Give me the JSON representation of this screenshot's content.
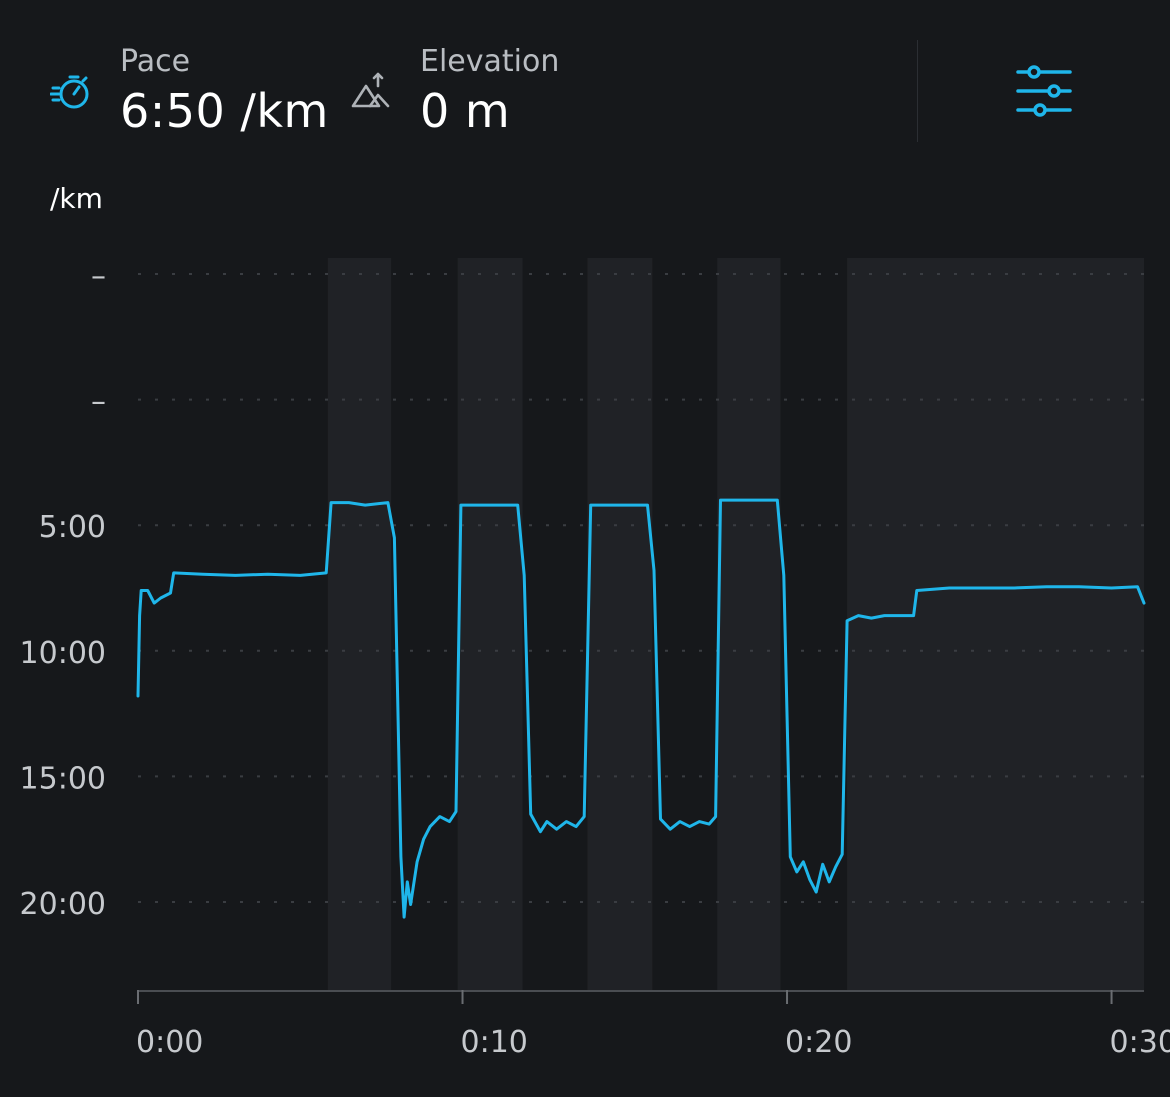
{
  "header": {
    "pace": {
      "label": "Pace",
      "value": "6:50 /km",
      "icon": "stopwatch-icon"
    },
    "elevation": {
      "label": "Elevation",
      "value": "0 m",
      "icon": "mountain-elevation-icon"
    },
    "settings": {
      "icon": "sliders-settings-icon"
    }
  },
  "colors": {
    "background": "#16181b",
    "accent": "#1fb6ea",
    "shade": "#202226",
    "grid": "#3a3d42",
    "axis_text": "#c6c9cd"
  },
  "chart_data": {
    "type": "line",
    "ylabel": "/km",
    "y_axis": "pace, minutes per km (inverted: faster at top)",
    "y_ticks": [
      "–",
      "–",
      "5:00",
      "10:00",
      "15:00",
      "20:00"
    ],
    "y_tick_values": [
      -5,
      0,
      5,
      10,
      15,
      20
    ],
    "ylim": [
      -5,
      23.5
    ],
    "x_ticks": [
      "0:00",
      "0:10",
      "0:20",
      "0:30"
    ],
    "x_tick_values": [
      0,
      10,
      20,
      30
    ],
    "xlim": [
      0,
      31
    ],
    "grid": "horizontal dotted",
    "shaded_intervals": [
      [
        5.85,
        7.8
      ],
      [
        9.85,
        11.85
      ],
      [
        13.85,
        15.85
      ],
      [
        17.85,
        19.8
      ],
      [
        21.85,
        31
      ]
    ],
    "series": [
      {
        "points": [
          [
            0,
            11.8
          ],
          [
            0.05,
            8.6
          ],
          [
            0.1,
            7.6
          ],
          [
            0.3,
            7.6
          ],
          [
            0.5,
            8.1
          ],
          [
            0.7,
            7.9
          ],
          [
            1.0,
            7.7
          ],
          [
            1.1,
            6.9
          ],
          [
            2.0,
            6.95
          ],
          [
            3.0,
            7.0
          ],
          [
            4.0,
            6.95
          ],
          [
            5.0,
            7.0
          ],
          [
            5.8,
            6.9
          ],
          [
            5.95,
            4.1
          ],
          [
            6.5,
            4.1
          ],
          [
            7.0,
            4.2
          ],
          [
            7.7,
            4.1
          ],
          [
            7.9,
            5.5
          ],
          [
            8.1,
            18.2
          ],
          [
            8.2,
            20.6
          ],
          [
            8.3,
            19.2
          ],
          [
            8.4,
            20.1
          ],
          [
            8.6,
            18.4
          ],
          [
            8.8,
            17.5
          ],
          [
            9.0,
            17.0
          ],
          [
            9.3,
            16.6
          ],
          [
            9.6,
            16.8
          ],
          [
            9.8,
            16.4
          ],
          [
            9.95,
            4.2
          ],
          [
            10.5,
            4.2
          ],
          [
            11.0,
            4.2
          ],
          [
            11.7,
            4.2
          ],
          [
            11.9,
            7.0
          ],
          [
            12.1,
            16.5
          ],
          [
            12.4,
            17.2
          ],
          [
            12.6,
            16.8
          ],
          [
            12.9,
            17.1
          ],
          [
            13.2,
            16.8
          ],
          [
            13.5,
            17.0
          ],
          [
            13.75,
            16.6
          ],
          [
            13.95,
            4.2
          ],
          [
            14.5,
            4.2
          ],
          [
            15.0,
            4.2
          ],
          [
            15.7,
            4.2
          ],
          [
            15.9,
            6.8
          ],
          [
            16.1,
            16.7
          ],
          [
            16.4,
            17.1
          ],
          [
            16.7,
            16.8
          ],
          [
            17.0,
            17.0
          ],
          [
            17.3,
            16.8
          ],
          [
            17.6,
            16.9
          ],
          [
            17.8,
            16.6
          ],
          [
            17.95,
            4.0
          ],
          [
            18.5,
            4.0
          ],
          [
            19.0,
            4.0
          ],
          [
            19.7,
            4.0
          ],
          [
            19.9,
            7.0
          ],
          [
            20.1,
            18.2
          ],
          [
            20.3,
            18.8
          ],
          [
            20.5,
            18.4
          ],
          [
            20.7,
            19.1
          ],
          [
            20.9,
            19.6
          ],
          [
            21.1,
            18.5
          ],
          [
            21.3,
            19.2
          ],
          [
            21.5,
            18.6
          ],
          [
            21.7,
            18.1
          ],
          [
            21.85,
            8.8
          ],
          [
            22.2,
            8.6
          ],
          [
            22.6,
            8.7
          ],
          [
            23.0,
            8.6
          ],
          [
            23.5,
            8.6
          ],
          [
            23.9,
            8.6
          ],
          [
            24.0,
            7.6
          ],
          [
            25.0,
            7.5
          ],
          [
            26.0,
            7.5
          ],
          [
            27.0,
            7.5
          ],
          [
            28.0,
            7.45
          ],
          [
            29.0,
            7.45
          ],
          [
            30.0,
            7.5
          ],
          [
            30.8,
            7.45
          ],
          [
            31.0,
            8.1
          ]
        ]
      }
    ]
  }
}
